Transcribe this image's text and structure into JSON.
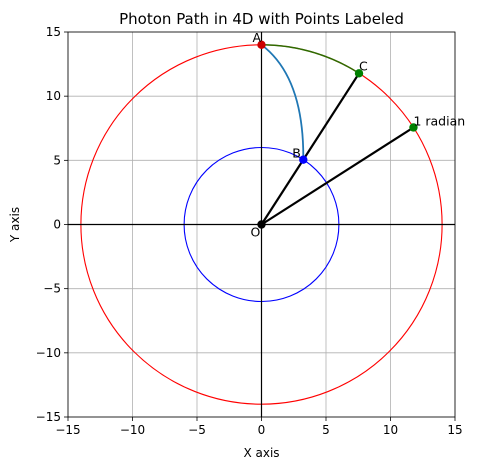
{
  "chart_data": {
    "type": "scatter",
    "title": "Photon Path in 4D with Points Labeled",
    "xlabel": "X axis",
    "ylabel": "Y axis",
    "xlim": [
      -15,
      15
    ],
    "ylim": [
      -15,
      15
    ],
    "xticks": [
      -15,
      -10,
      -5,
      0,
      5,
      10,
      15
    ],
    "yticks": [
      -15,
      -10,
      -5,
      0,
      5,
      10,
      15
    ],
    "xtick_labels": [
      "−15",
      "−10",
      "−5",
      "0",
      "5",
      "10",
      "15"
    ],
    "ytick_labels": [
      "−15",
      "−10",
      "−5",
      "0",
      "5",
      "10",
      "15"
    ],
    "grid": true,
    "colors": {
      "outer_circle": "#ff0000",
      "inner_circle": "#0000ff",
      "blue_curve": "#1f77b4",
      "green_arc": "#2e6b00",
      "point_A": "#cc0000",
      "point_B": "#0000ff",
      "point_C": "#008000",
      "point_1rad": "#008000",
      "lines": "#000000"
    },
    "circles": [
      {
        "center": [
          0,
          0
        ],
        "radius": 14,
        "color": "#ff0000"
      },
      {
        "center": [
          0,
          0
        ],
        "radius": 6,
        "color": "#0000ff"
      }
    ],
    "points": [
      {
        "label": "A",
        "x": 0,
        "y": 14,
        "color": "#cc0000"
      },
      {
        "label": "B",
        "x": 3.24,
        "y": 5.05,
        "color": "#0000ff"
      },
      {
        "label": "C",
        "x": 7.56,
        "y": 11.78,
        "color": "#008000"
      },
      {
        "label": "1 radian",
        "x": 11.78,
        "y": 7.56,
        "color": "#008000"
      },
      {
        "label": "O",
        "x": 0,
        "y": 0,
        "color": "#000000"
      }
    ],
    "segments": [
      {
        "from": [
          0,
          0
        ],
        "to": [
          7.56,
          11.78
        ]
      },
      {
        "from": [
          0,
          0
        ],
        "to": [
          11.78,
          7.56
        ]
      }
    ],
    "blue_curve": {
      "from": [
        0,
        14
      ],
      "to": [
        3.24,
        5.05
      ],
      "control": [
        3.3,
        11.5
      ]
    },
    "green_arc": {
      "center": [
        0,
        0
      ],
      "radius": 14,
      "from": [
        0,
        14
      ],
      "to": [
        7.56,
        11.78
      ]
    }
  }
}
